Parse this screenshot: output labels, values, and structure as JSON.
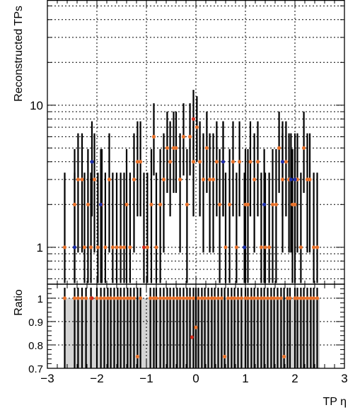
{
  "chart_data": [
    {
      "type": "scatter",
      "title": "",
      "xlabel": "",
      "ylabel": "Reconstructed TPs",
      "xlim": [
        -3,
        3
      ],
      "ylim": [
        0.55,
        55
      ],
      "y_scale": "log",
      "grid": true,
      "y_ticks": [
        {
          "value": 1,
          "label": "1"
        },
        {
          "value": 10,
          "label": "10"
        }
      ],
      "series": [
        {
          "color": "#e8712a",
          "points": [
            [
              -2.65,
              1
            ],
            [
              -2.45,
              2
            ],
            [
              -2.38,
              3
            ],
            [
              -2.3,
              3
            ],
            [
              -2.25,
              1
            ],
            [
              -2.18,
              2
            ],
            [
              -2.12,
              1
            ],
            [
              -2.05,
              3
            ],
            [
              -1.98,
              1
            ],
            [
              -1.9,
              2
            ],
            [
              -1.83,
              1
            ],
            [
              -1.75,
              3
            ],
            [
              -1.68,
              1
            ],
            [
              -1.6,
              1
            ],
            [
              -1.52,
              1
            ],
            [
              -1.45,
              1
            ],
            [
              -1.4,
              2
            ],
            [
              -1.33,
              1
            ],
            [
              -1.25,
              3
            ],
            [
              -1.18,
              4
            ],
            [
              -1.12,
              4
            ],
            [
              -0.98,
              1
            ],
            [
              -0.9,
              2
            ],
            [
              -0.85,
              6
            ],
            [
              -0.8,
              1
            ],
            [
              -0.72,
              2
            ],
            [
              -0.65,
              3
            ],
            [
              -0.58,
              5
            ],
            [
              -0.52,
              4
            ],
            [
              -0.45,
              5
            ],
            [
              -0.4,
              5
            ],
            [
              -0.32,
              3
            ],
            [
              -0.25,
              6
            ],
            [
              -0.18,
              2
            ],
            [
              -0.12,
              6
            ],
            [
              -0.05,
              4
            ],
            [
              0.02,
              7
            ],
            [
              0.08,
              4
            ],
            [
              0.15,
              3
            ],
            [
              0.22,
              5
            ],
            [
              0.28,
              3
            ],
            [
              0.35,
              3
            ],
            [
              0.42,
              4
            ],
            [
              0.48,
              2
            ],
            [
              0.55,
              4
            ],
            [
              0.6,
              1
            ],
            [
              0.68,
              2
            ],
            [
              0.75,
              4
            ],
            [
              0.82,
              1
            ],
            [
              0.88,
              4
            ],
            [
              1.0,
              2
            ],
            [
              1.05,
              2
            ],
            [
              1.1,
              4
            ],
            [
              1.18,
              3
            ],
            [
              1.25,
              4
            ],
            [
              1.32,
              1
            ],
            [
              1.4,
              1
            ],
            [
              1.48,
              1
            ],
            [
              1.55,
              2
            ],
            [
              1.62,
              2
            ],
            [
              1.68,
              5
            ],
            [
              1.75,
              3
            ],
            [
              1.82,
              4
            ],
            [
              1.88,
              3
            ],
            [
              1.95,
              2
            ],
            [
              2.0,
              2
            ],
            [
              2.05,
              3
            ],
            [
              2.12,
              1
            ],
            [
              2.18,
              5
            ],
            [
              2.25,
              3
            ],
            [
              2.3,
              3
            ],
            [
              2.38,
              1
            ],
            [
              2.45,
              1
            ]
          ]
        },
        {
          "color": "#1a2da8",
          "points": [
            [
              -2.45,
              1
            ],
            [
              -2.1,
              4
            ],
            [
              -1.92,
              2
            ],
            [
              0.55,
              4
            ],
            [
              0.98,
              1
            ],
            [
              1.38,
              2
            ],
            [
              1.75,
              4
            ],
            [
              1.92,
              3
            ],
            [
              2.0,
              3
            ]
          ]
        },
        {
          "color": "#d42a1c",
          "points": [
            [
              -1.05,
              1
            ],
            [
              -0.05,
              8
            ]
          ]
        }
      ]
    },
    {
      "type": "scatter",
      "title": "",
      "xlabel": "TP η",
      "ylabel": "Ratio",
      "xlim": [
        -3,
        3
      ],
      "ylim": [
        0.7,
        1.06
      ],
      "grid": true,
      "x_ticks": [
        {
          "value": -3,
          "label": "−3"
        },
        {
          "value": -2,
          "label": "−2"
        },
        {
          "value": -1,
          "label": "−1"
        },
        {
          "value": 0,
          "label": "0"
        },
        {
          "value": 1,
          "label": "1"
        },
        {
          "value": 2,
          "label": "2"
        },
        {
          "value": 3,
          "label": "3"
        }
      ],
      "y_ticks": [
        {
          "value": 1,
          "label": "1"
        },
        {
          "value": 0.9,
          "label": "0.9"
        },
        {
          "value": 0.8,
          "label": "0.8"
        },
        {
          "value": 0.7,
          "label": "0.7"
        }
      ],
      "band": {
        "x_range": [
          -2.65,
          2.5
        ],
        "y_range": [
          0.7,
          1.0
        ],
        "color": "#d4d4d4"
      },
      "series": [
        {
          "color": "#e8712a",
          "points": [
            [
              -2.65,
              1
            ],
            [
              -2.45,
              1
            ],
            [
              -2.38,
              1
            ],
            [
              -2.3,
              1
            ],
            [
              -2.22,
              1
            ],
            [
              -2.12,
              1
            ],
            [
              -2.0,
              1
            ],
            [
              -1.92,
              1
            ],
            [
              -1.85,
              1
            ],
            [
              -1.78,
              1
            ],
            [
              -1.72,
              1
            ],
            [
              -1.65,
              1
            ],
            [
              -1.58,
              1
            ],
            [
              -1.52,
              1
            ],
            [
              -1.45,
              1
            ],
            [
              -1.38,
              1
            ],
            [
              -1.32,
              1
            ],
            [
              -1.25,
              1
            ],
            [
              -1.18,
              0.75
            ],
            [
              -1.12,
              1
            ],
            [
              -0.92,
              1
            ],
            [
              -0.85,
              1
            ],
            [
              -0.8,
              1
            ],
            [
              -0.72,
              1
            ],
            [
              -0.65,
              1
            ],
            [
              -0.58,
              1
            ],
            [
              -0.52,
              1
            ],
            [
              -0.45,
              1
            ],
            [
              -0.38,
              1
            ],
            [
              -0.32,
              1
            ],
            [
              -0.25,
              1
            ],
            [
              -0.18,
              1
            ],
            [
              -0.12,
              1
            ],
            [
              -0.05,
              1
            ],
            [
              0.0,
              0.875
            ],
            [
              0.05,
              1
            ],
            [
              0.12,
              1
            ],
            [
              0.18,
              1
            ],
            [
              0.25,
              1
            ],
            [
              0.32,
              1
            ],
            [
              0.38,
              1
            ],
            [
              0.45,
              1
            ],
            [
              0.52,
              1
            ],
            [
              0.58,
              0.75
            ],
            [
              0.65,
              1
            ],
            [
              0.72,
              1
            ],
            [
              0.78,
              1
            ],
            [
              0.85,
              1
            ],
            [
              0.92,
              1
            ],
            [
              1.0,
              1
            ],
            [
              1.05,
              1
            ],
            [
              1.12,
              1
            ],
            [
              1.18,
              1
            ],
            [
              1.25,
              1
            ],
            [
              1.32,
              1
            ],
            [
              1.38,
              1
            ],
            [
              1.45,
              1
            ],
            [
              1.52,
              1
            ],
            [
              1.58,
              1
            ],
            [
              1.65,
              1
            ],
            [
              1.72,
              1
            ],
            [
              1.78,
              0.75
            ],
            [
              1.85,
              1
            ],
            [
              1.9,
              1
            ],
            [
              2.0,
              1
            ],
            [
              2.05,
              1
            ],
            [
              2.12,
              1
            ],
            [
              2.18,
              1
            ],
            [
              2.25,
              1
            ],
            [
              2.32,
              1
            ],
            [
              2.38,
              1
            ],
            [
              2.45,
              1
            ]
          ]
        },
        {
          "color": "#d42a1c",
          "points": [
            [
              -2.1,
              1
            ],
            [
              -0.08,
              0.833
            ]
          ]
        }
      ]
    }
  ]
}
